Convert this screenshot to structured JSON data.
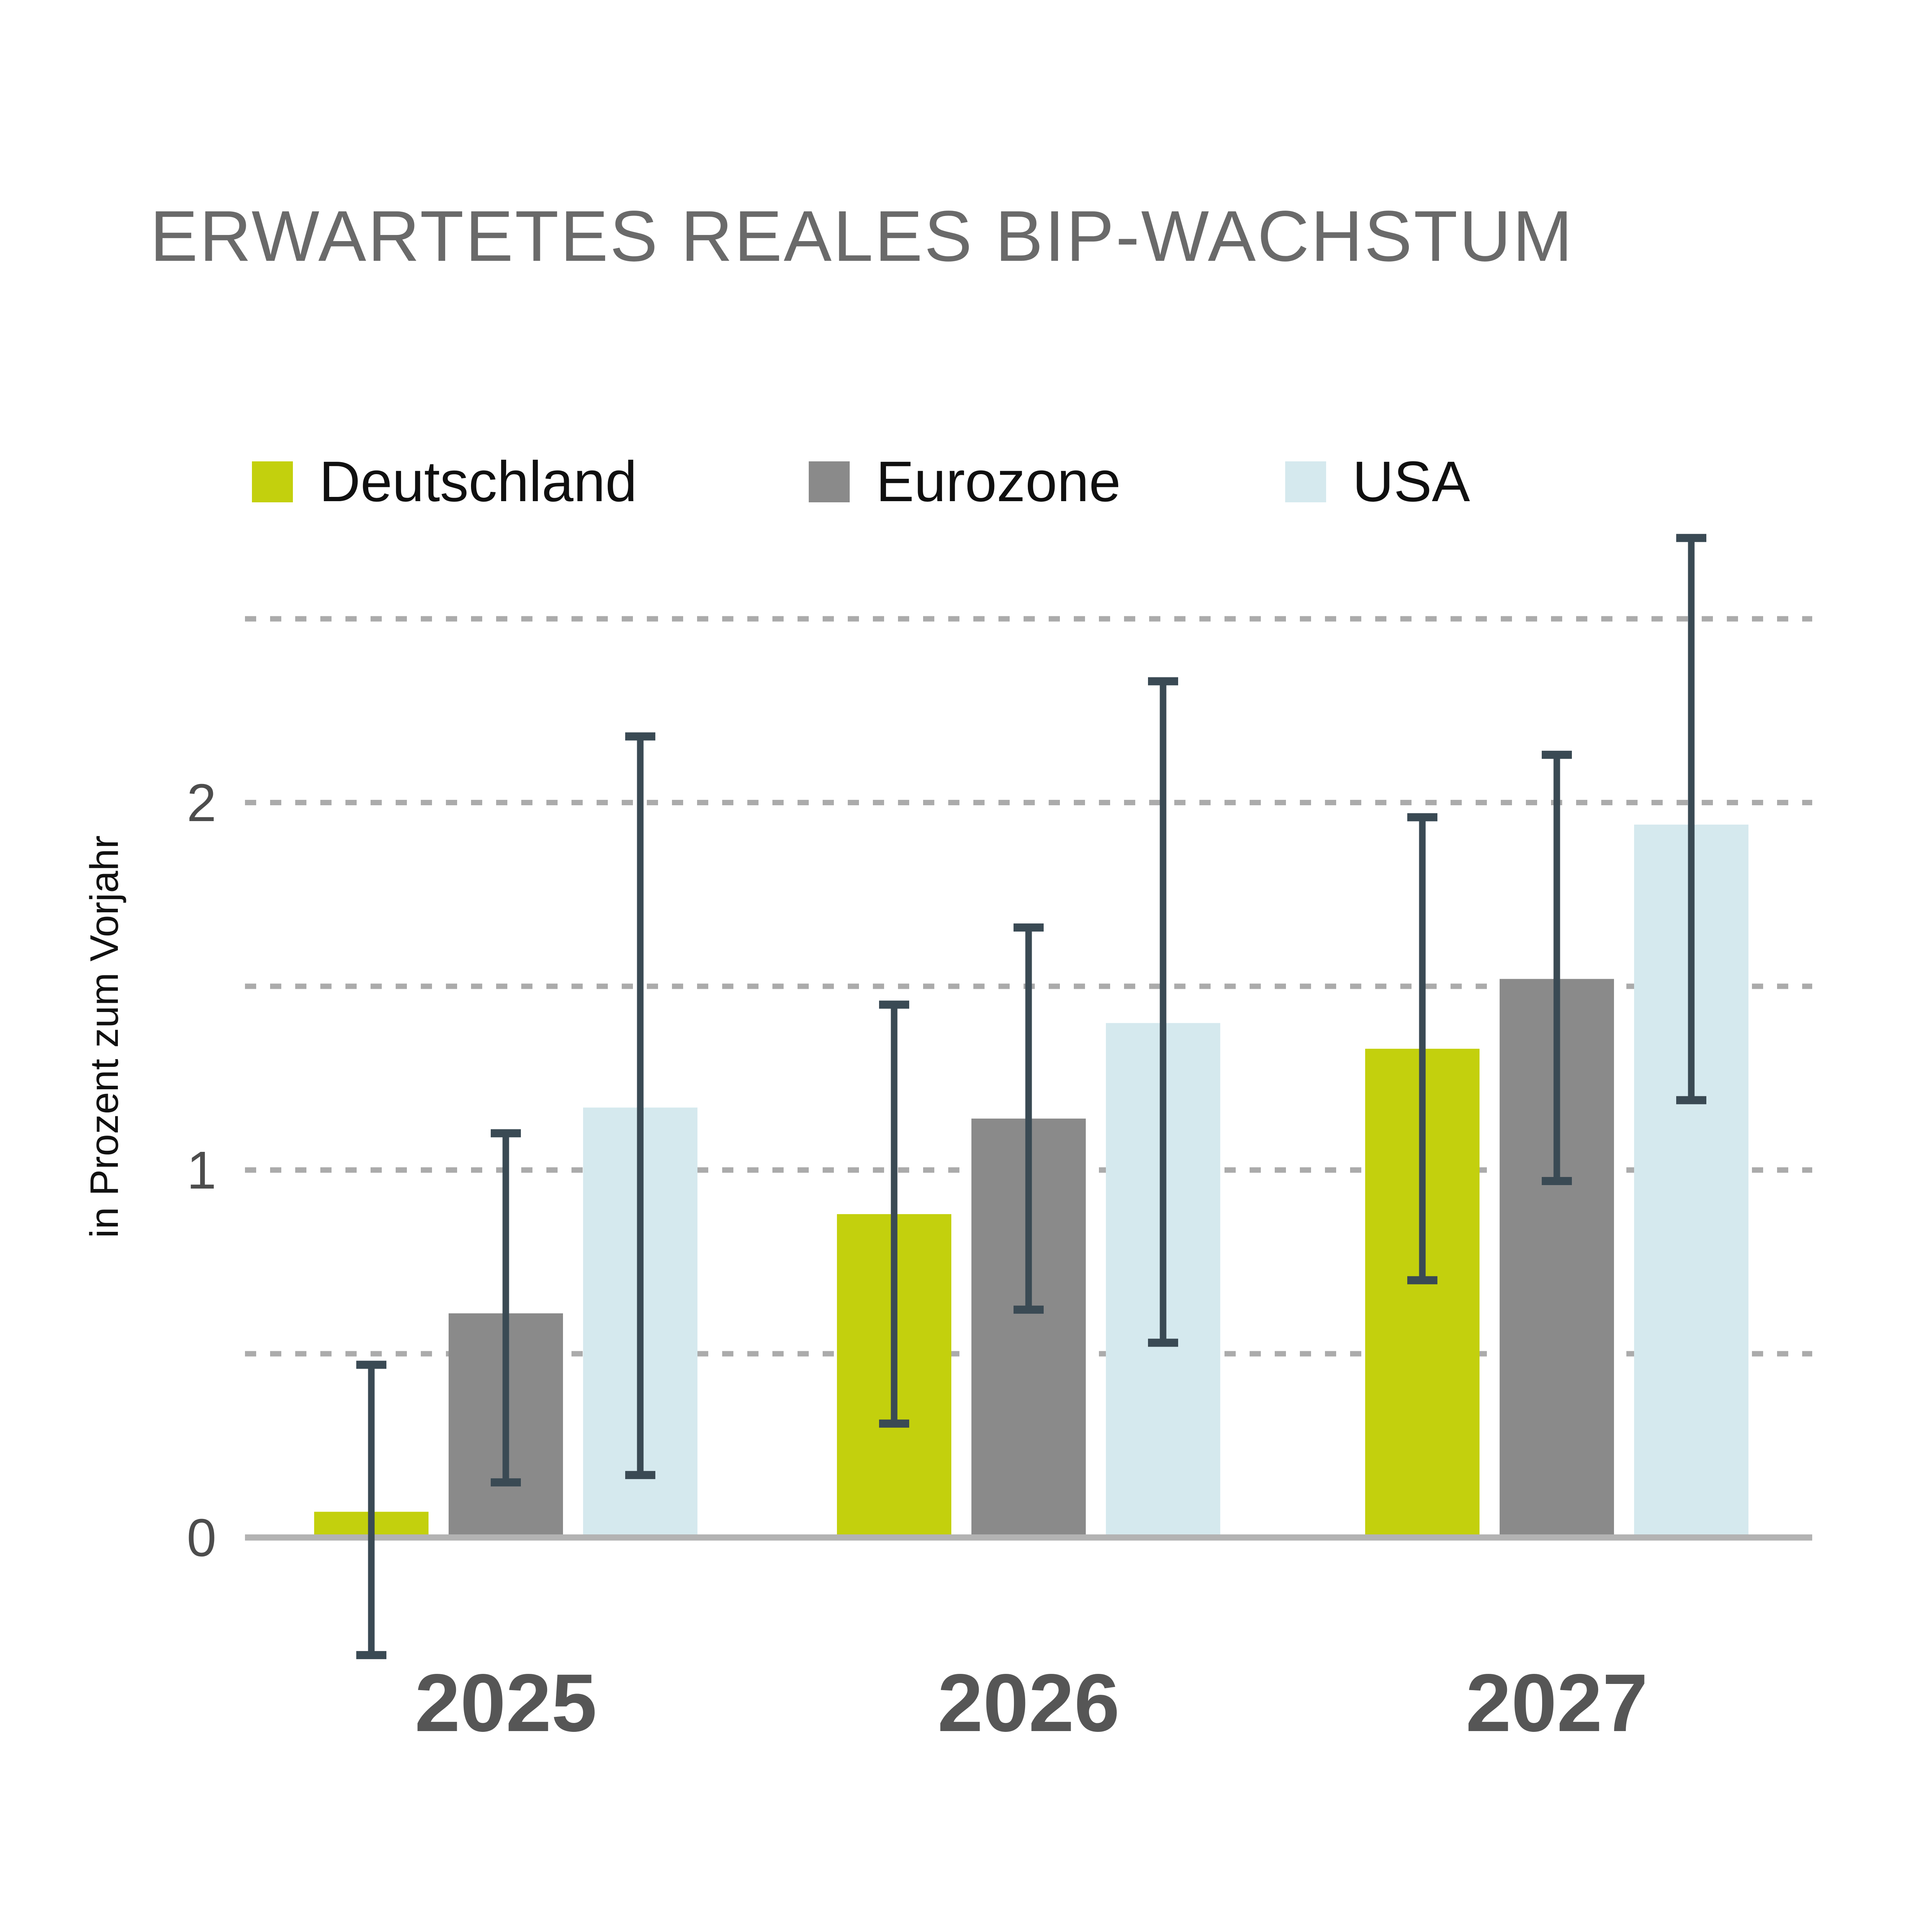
{
  "title": "ERWARTETES REALES BIP-WACHSTUM",
  "chart_data": {
    "type": "bar",
    "title": "ERWARTETES REALES BIP-WACHSTUM",
    "xlabel": "",
    "ylabel": "in Prozent zum Vorjahr",
    "categories": [
      "2025",
      "2026",
      "2027"
    ],
    "series": [
      {
        "name": "Deutschland",
        "color": "#c3d00d",
        "values": [
          0.07,
          0.88,
          1.33
        ],
        "error_low": [
          -0.32,
          0.31,
          0.7
        ],
        "error_high": [
          0.47,
          1.45,
          1.96
        ]
      },
      {
        "name": "Eurozone",
        "color": "#8a8a8a",
        "values": [
          0.61,
          1.14,
          1.52
        ],
        "error_low": [
          0.15,
          0.62,
          0.97
        ],
        "error_high": [
          1.1,
          1.66,
          2.13
        ]
      },
      {
        "name": "USA",
        "color": "#d5e9ee",
        "values": [
          1.17,
          1.4,
          1.94
        ],
        "error_low": [
          0.17,
          0.53,
          1.19
        ],
        "error_high": [
          2.18,
          2.33,
          2.72
        ]
      }
    ],
    "yticks": [
      "0",
      "1",
      "2"
    ],
    "ytick_values": [
      0,
      1,
      2
    ],
    "gridline_values": [
      0.5,
      1.0,
      1.5,
      2.0,
      2.5
    ],
    "ylim": [
      -0.45,
      2.85
    ],
    "grid": "dashed-horizontal",
    "legend_position": "top",
    "error_bar_color": "#3a4a54",
    "baseline_color": "#b3b3b3",
    "gridline_color": "#ababab",
    "title_color": "#6a6a6a",
    "tick_label_color": "#4d4d4d",
    "year_label_color": "#565656"
  }
}
